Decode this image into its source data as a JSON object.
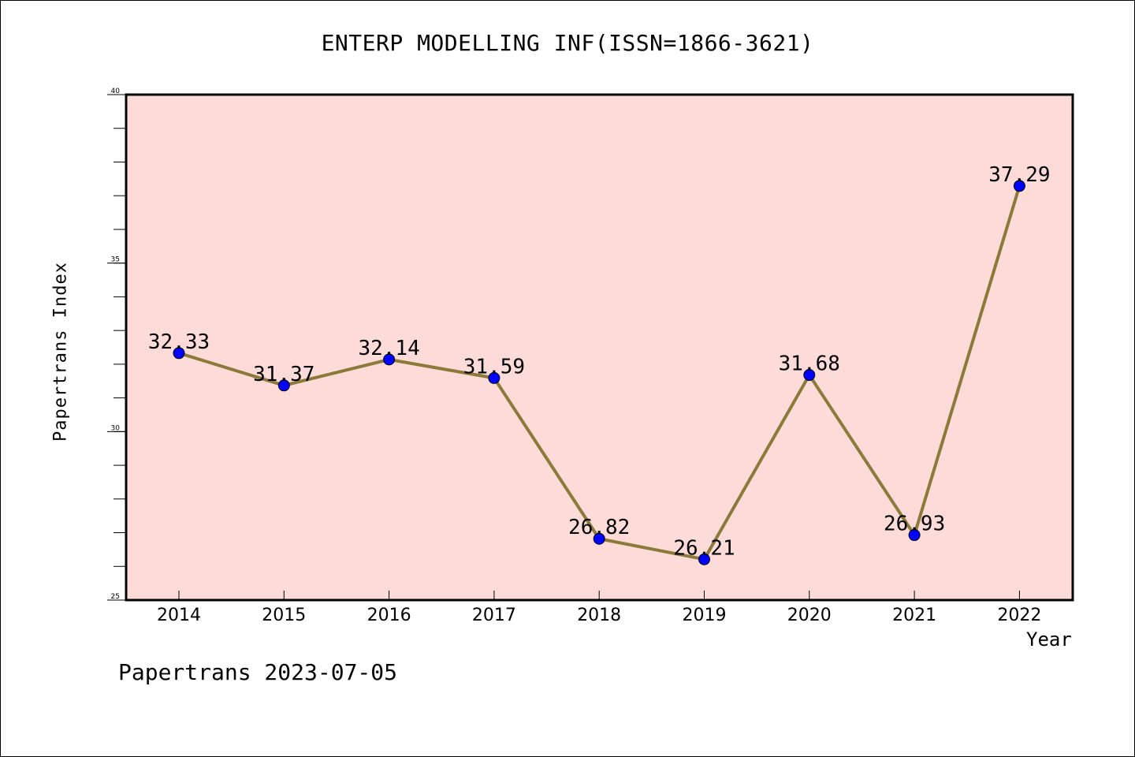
{
  "colors": {
    "plot_background": "#fddbd9",
    "line": "#8b7a3a",
    "marker_fill": "#0000ff",
    "axis": "#000000"
  },
  "footer": "Papertrans 2023-07-05",
  "chart_data": {
    "type": "line",
    "title": "ENTERP MODELLING INF(ISSN=1866-3621)",
    "xlabel": "Year",
    "ylabel": "Papertrans Index",
    "categories": [
      "2014",
      "2015",
      "2016",
      "2017",
      "2018",
      "2019",
      "2020",
      "2021",
      "2022"
    ],
    "series": [
      {
        "values": [
          32.33,
          31.37,
          32.14,
          31.59,
          26.82,
          26.21,
          31.68,
          26.93,
          37.29
        ],
        "labels": [
          "32.33",
          "31.37",
          "32.14",
          "31.59",
          "26.82",
          "26.21",
          "31.68",
          "26.93",
          "37.29"
        ]
      }
    ],
    "ylim": [
      25,
      40
    ],
    "yticks": [
      25,
      30,
      35,
      40
    ],
    "grid": false,
    "legend": "none"
  }
}
